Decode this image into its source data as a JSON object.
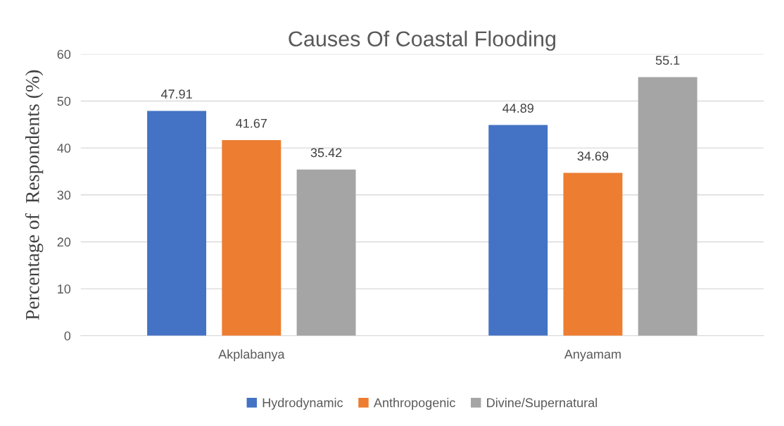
{
  "chart_data": {
    "type": "bar",
    "title": "Causes Of Coastal Flooding",
    "ylabel": "Percentage of  Respondents (%)",
    "categories": [
      "Akplabanya",
      "Anyamam"
    ],
    "series": [
      {
        "name": "Hydrodynamic",
        "color": "#4472c4",
        "values": [
          47.91,
          44.89
        ]
      },
      {
        "name": "Anthropogenic",
        "color": "#ed7d31",
        "values": [
          41.67,
          34.69
        ]
      },
      {
        "name": "Divine/Supernatural",
        "color": "#a5a5a5",
        "values": [
          35.42,
          55.1
        ]
      }
    ],
    "ylim": [
      0,
      60
    ],
    "yticks": [
      0,
      10,
      20,
      30,
      40,
      50,
      60
    ],
    "grid": "y",
    "legend": "bottom",
    "data_labels": true
  }
}
